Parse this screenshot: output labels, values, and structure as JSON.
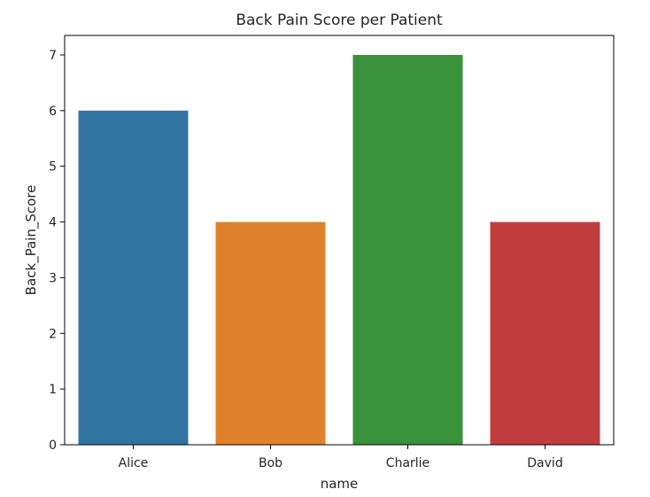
{
  "chart_data": {
    "type": "bar",
    "title": "Back Pain Score per Patient",
    "xlabel": "name",
    "ylabel": "Back_Pain_Score",
    "categories": [
      "Alice",
      "Bob",
      "Charlie",
      "David"
    ],
    "values": [
      6,
      4,
      7,
      4
    ],
    "colors": [
      "#3274a1",
      "#e1812c",
      "#3a923a",
      "#c03d3e"
    ],
    "ylim": [
      0,
      7.35
    ],
    "yticks": [
      0,
      1,
      2,
      3,
      4,
      5,
      6,
      7
    ],
    "grid": false,
    "legend": "none"
  }
}
